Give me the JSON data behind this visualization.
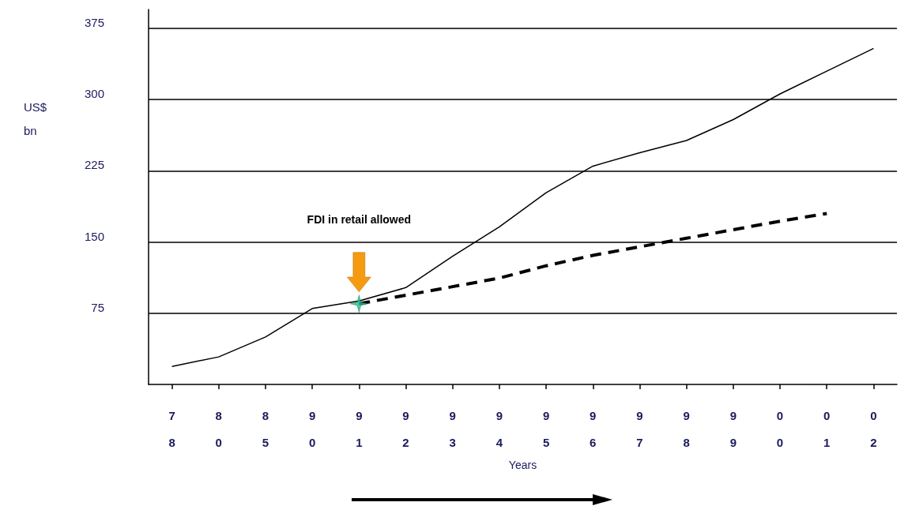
{
  "chart_data": {
    "type": "line",
    "xlabel": "Years",
    "ylabel": "US$ bn",
    "categories": [
      "78",
      "80",
      "85",
      "90",
      "91",
      "92",
      "93",
      "94",
      "95",
      "96",
      "97",
      "98",
      "99",
      "00",
      "01",
      "02"
    ],
    "series": [
      {
        "color": "#000000",
        "line_style": "solid",
        "values": [
          19,
          29,
          50,
          80,
          88,
          102,
          135,
          166,
          202,
          230,
          244,
          257,
          279,
          306,
          330,
          354
        ]
      },
      {
        "color": "#000000",
        "line_style": "dashed",
        "values": [
          null,
          null,
          null,
          null,
          85,
          94,
          103,
          112,
          125,
          136,
          145,
          154,
          163,
          172,
          180,
          null
        ]
      },
      {
        "type": "scatter",
        "marker": "star",
        "color": "#1fbf8f",
        "values": [
          null,
          null,
          null,
          null,
          85,
          null,
          null,
          null,
          null,
          null,
          null,
          null,
          null,
          null,
          null,
          null
        ]
      }
    ],
    "annotations": [
      "FDI in retail allowed"
    ],
    "ylim": [
      0,
      395
    ],
    "yticks": [
      75,
      150,
      225,
      300,
      375
    ],
    "grid": "y",
    "marker": "none"
  }
}
